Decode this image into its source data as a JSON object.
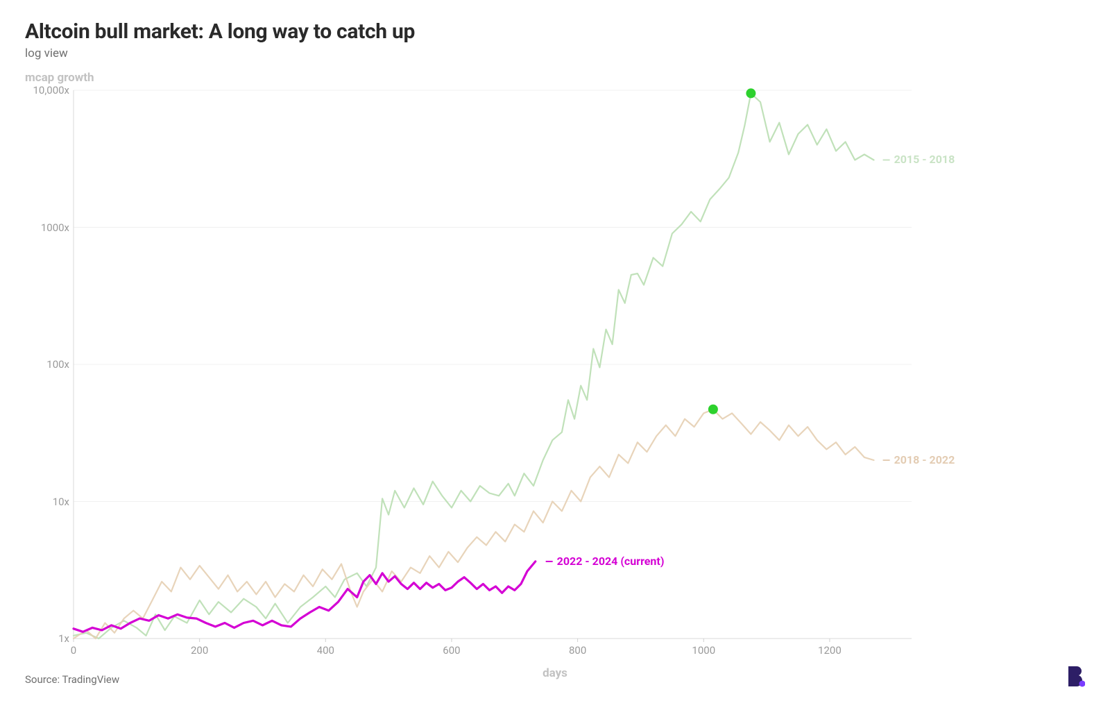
{
  "title": "Altcoin bull market: A long way to catch up",
  "subtitle": "log view",
  "ylabel": "mcap growth",
  "xlabel": "days",
  "source": "Source: TradingView",
  "chart": {
    "type": "line",
    "yscale": "log",
    "background_color": "#ffffff",
    "grid_color": "#f0f0f0",
    "xlim": [
      0,
      1330
    ],
    "ylim_log": [
      0,
      4
    ],
    "yticks": [
      {
        "value": 1,
        "label": "1x"
      },
      {
        "value": 10,
        "label": "10x"
      },
      {
        "value": 100,
        "label": "100x"
      },
      {
        "value": 1000,
        "label": "1000x"
      },
      {
        "value": 10000,
        "label": "10,000x"
      }
    ],
    "xticks": [
      0,
      200,
      400,
      600,
      800,
      1000,
      1200
    ],
    "line_width_faded": 2.2,
    "line_width_bold": 3.2,
    "tick_fontsize": 15,
    "label_fontsize": 17,
    "series": [
      {
        "key": "s2015",
        "label": "2015 - 2018",
        "label_color": "#c9e3c5",
        "color": "#b9deb1",
        "opacity": 0.9,
        "width": 2.2,
        "marker": {
          "x": 1075,
          "y": 9500,
          "color": "#2dd12d",
          "r": 7
        },
        "data": [
          [
            0,
            1.05
          ],
          [
            20,
            1.1
          ],
          [
            40,
            1.0
          ],
          [
            60,
            1.2
          ],
          [
            80,
            1.35
          ],
          [
            100,
            1.2
          ],
          [
            115,
            1.05
          ],
          [
            130,
            1.5
          ],
          [
            145,
            1.15
          ],
          [
            160,
            1.45
          ],
          [
            180,
            1.3
          ],
          [
            200,
            1.9
          ],
          [
            215,
            1.5
          ],
          [
            230,
            1.85
          ],
          [
            250,
            1.55
          ],
          [
            270,
            1.95
          ],
          [
            290,
            1.7
          ],
          [
            305,
            1.4
          ],
          [
            320,
            1.8
          ],
          [
            340,
            1.3
          ],
          [
            360,
            1.7
          ],
          [
            380,
            2.0
          ],
          [
            400,
            2.4
          ],
          [
            415,
            2.0
          ],
          [
            430,
            2.7
          ],
          [
            450,
            3.0
          ],
          [
            465,
            2.4
          ],
          [
            480,
            3.3
          ],
          [
            490,
            10.5
          ],
          [
            500,
            8.0
          ],
          [
            510,
            12.0
          ],
          [
            525,
            9.0
          ],
          [
            540,
            12.5
          ],
          [
            555,
            9.5
          ],
          [
            570,
            14.0
          ],
          [
            585,
            11.0
          ],
          [
            600,
            9.0
          ],
          [
            615,
            12.0
          ],
          [
            630,
            10.0
          ],
          [
            645,
            13.0
          ],
          [
            660,
            11.5
          ],
          [
            675,
            11.0
          ],
          [
            690,
            13.5
          ],
          [
            700,
            11.0
          ],
          [
            715,
            16.0
          ],
          [
            730,
            13.0
          ],
          [
            745,
            20.0
          ],
          [
            760,
            28.0
          ],
          [
            775,
            32.0
          ],
          [
            785,
            55.0
          ],
          [
            795,
            40.0
          ],
          [
            805,
            70.0
          ],
          [
            815,
            55.0
          ],
          [
            825,
            130.0
          ],
          [
            835,
            95.0
          ],
          [
            845,
            180.0
          ],
          [
            855,
            140.0
          ],
          [
            865,
            350.0
          ],
          [
            875,
            280.0
          ],
          [
            885,
            450.0
          ],
          [
            895,
            460.0
          ],
          [
            905,
            380.0
          ],
          [
            920,
            600.0
          ],
          [
            935,
            520.0
          ],
          [
            950,
            900.0
          ],
          [
            965,
            1050.0
          ],
          [
            980,
            1300.0
          ],
          [
            995,
            1100.0
          ],
          [
            1010,
            1600.0
          ],
          [
            1025,
            1900.0
          ],
          [
            1040,
            2300.0
          ],
          [
            1055,
            3500.0
          ],
          [
            1065,
            5500.0
          ],
          [
            1075,
            9500.0
          ],
          [
            1090,
            8200.0
          ],
          [
            1105,
            4200.0
          ],
          [
            1120,
            5800.0
          ],
          [
            1135,
            3400.0
          ],
          [
            1150,
            4800.0
          ],
          [
            1165,
            5600.0
          ],
          [
            1180,
            4000.0
          ],
          [
            1195,
            5200.0
          ],
          [
            1210,
            3600.0
          ],
          [
            1225,
            4200.0
          ],
          [
            1240,
            3100.0
          ],
          [
            1255,
            3400.0
          ],
          [
            1270,
            3100.0
          ]
        ]
      },
      {
        "key": "s2018",
        "label": "2018 - 2022",
        "label_color": "#e3ccb3",
        "color": "#e6cfb3",
        "opacity": 0.9,
        "width": 2.2,
        "marker": {
          "x": 1015,
          "y": 47,
          "color": "#2dd12d",
          "r": 7
        },
        "data": [
          [
            0,
            1.0
          ],
          [
            20,
            1.15
          ],
          [
            35,
            1.0
          ],
          [
            50,
            1.3
          ],
          [
            65,
            1.1
          ],
          [
            80,
            1.4
          ],
          [
            95,
            1.6
          ],
          [
            110,
            1.4
          ],
          [
            125,
            1.9
          ],
          [
            140,
            2.6
          ],
          [
            155,
            2.2
          ],
          [
            170,
            3.3
          ],
          [
            185,
            2.7
          ],
          [
            200,
            3.4
          ],
          [
            215,
            2.8
          ],
          [
            230,
            2.3
          ],
          [
            245,
            2.9
          ],
          [
            260,
            2.2
          ],
          [
            275,
            2.6
          ],
          [
            290,
            2.1
          ],
          [
            305,
            2.6
          ],
          [
            320,
            2.0
          ],
          [
            335,
            2.5
          ],
          [
            350,
            2.2
          ],
          [
            365,
            2.9
          ],
          [
            380,
            2.4
          ],
          [
            395,
            3.2
          ],
          [
            410,
            2.7
          ],
          [
            425,
            3.5
          ],
          [
            440,
            2.2
          ],
          [
            450,
            1.7
          ],
          [
            460,
            2.2
          ],
          [
            475,
            2.7
          ],
          [
            490,
            2.2
          ],
          [
            505,
            3.1
          ],
          [
            520,
            2.6
          ],
          [
            535,
            3.3
          ],
          [
            550,
            3.0
          ],
          [
            565,
            4.0
          ],
          [
            580,
            3.3
          ],
          [
            595,
            4.3
          ],
          [
            610,
            3.6
          ],
          [
            625,
            4.6
          ],
          [
            640,
            5.5
          ],
          [
            655,
            4.8
          ],
          [
            670,
            6.0
          ],
          [
            685,
            5.1
          ],
          [
            700,
            6.8
          ],
          [
            715,
            6.0
          ],
          [
            730,
            8.5
          ],
          [
            745,
            7.0
          ],
          [
            760,
            10.0
          ],
          [
            775,
            8.5
          ],
          [
            790,
            12.0
          ],
          [
            805,
            10.0
          ],
          [
            820,
            15.0
          ],
          [
            835,
            18.0
          ],
          [
            850,
            15.0
          ],
          [
            865,
            22.0
          ],
          [
            880,
            19.0
          ],
          [
            895,
            27.0
          ],
          [
            910,
            23.0
          ],
          [
            925,
            30.0
          ],
          [
            940,
            36.0
          ],
          [
            955,
            30.0
          ],
          [
            970,
            40.0
          ],
          [
            985,
            35.0
          ],
          [
            1000,
            44.0
          ],
          [
            1015,
            47.0
          ],
          [
            1030,
            40.0
          ],
          [
            1045,
            44.0
          ],
          [
            1060,
            37.0
          ],
          [
            1075,
            31.0
          ],
          [
            1090,
            38.0
          ],
          [
            1105,
            33.0
          ],
          [
            1120,
            28.0
          ],
          [
            1135,
            36.0
          ],
          [
            1150,
            30.0
          ],
          [
            1165,
            35.0
          ],
          [
            1180,
            28.0
          ],
          [
            1195,
            24.0
          ],
          [
            1210,
            27.0
          ],
          [
            1225,
            22.0
          ],
          [
            1240,
            25.0
          ],
          [
            1255,
            21.0
          ],
          [
            1270,
            20.0
          ]
        ]
      },
      {
        "key": "s2022",
        "label": "2022 - 2024 (current)",
        "label_color": "#d400d4",
        "color": "#d400d4",
        "opacity": 1.0,
        "width": 3.2,
        "data": [
          [
            0,
            1.18
          ],
          [
            15,
            1.12
          ],
          [
            30,
            1.2
          ],
          [
            45,
            1.15
          ],
          [
            60,
            1.25
          ],
          [
            75,
            1.18
          ],
          [
            90,
            1.3
          ],
          [
            105,
            1.4
          ],
          [
            120,
            1.35
          ],
          [
            135,
            1.48
          ],
          [
            150,
            1.4
          ],
          [
            165,
            1.5
          ],
          [
            180,
            1.42
          ],
          [
            195,
            1.4
          ],
          [
            210,
            1.3
          ],
          [
            225,
            1.22
          ],
          [
            240,
            1.3
          ],
          [
            255,
            1.2
          ],
          [
            270,
            1.3
          ],
          [
            285,
            1.35
          ],
          [
            300,
            1.25
          ],
          [
            315,
            1.35
          ],
          [
            330,
            1.25
          ],
          [
            345,
            1.22
          ],
          [
            360,
            1.4
          ],
          [
            375,
            1.55
          ],
          [
            390,
            1.7
          ],
          [
            405,
            1.6
          ],
          [
            420,
            1.85
          ],
          [
            435,
            2.3
          ],
          [
            450,
            2.0
          ],
          [
            460,
            2.6
          ],
          [
            470,
            2.9
          ],
          [
            480,
            2.5
          ],
          [
            490,
            3.0
          ],
          [
            500,
            2.6
          ],
          [
            510,
            2.85
          ],
          [
            520,
            2.5
          ],
          [
            530,
            2.3
          ],
          [
            540,
            2.55
          ],
          [
            550,
            2.3
          ],
          [
            560,
            2.55
          ],
          [
            570,
            2.35
          ],
          [
            580,
            2.5
          ],
          [
            590,
            2.25
          ],
          [
            600,
            2.35
          ],
          [
            610,
            2.6
          ],
          [
            620,
            2.8
          ],
          [
            630,
            2.55
          ],
          [
            640,
            2.3
          ],
          [
            650,
            2.5
          ],
          [
            660,
            2.25
          ],
          [
            670,
            2.4
          ],
          [
            680,
            2.15
          ],
          [
            690,
            2.4
          ],
          [
            700,
            2.25
          ],
          [
            710,
            2.5
          ],
          [
            720,
            3.1
          ],
          [
            733,
            3.65
          ]
        ]
      }
    ],
    "series_end_labels": [
      {
        "key": "s2015",
        "x": 1280,
        "y": 3100,
        "text": "2015 - 2018"
      },
      {
        "key": "s2018",
        "x": 1280,
        "y": 20,
        "text": "2018 - 2022"
      },
      {
        "key": "s2022",
        "x": 745,
        "y": 3.65,
        "text": "2022 - 2024 (current)"
      }
    ]
  }
}
